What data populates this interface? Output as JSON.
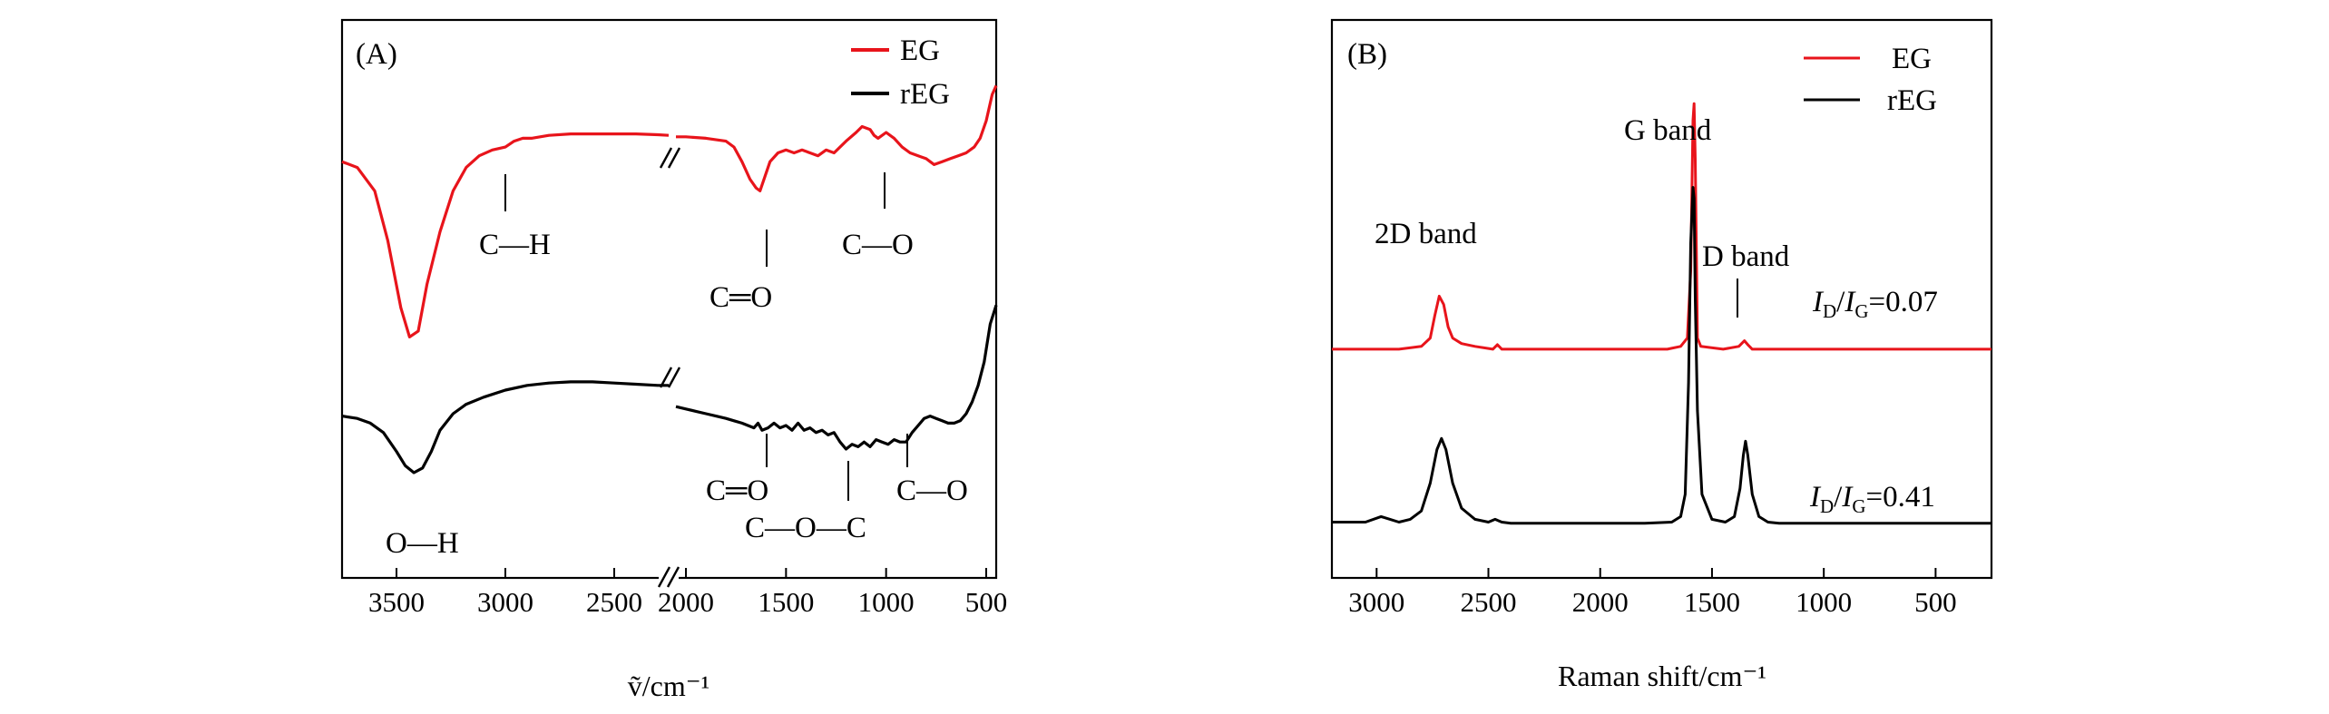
{
  "chart_data": [
    {
      "panel": "(A)",
      "type": "line",
      "title": "",
      "xlabel": "ṽ/cm⁻¹",
      "ylabel": "",
      "xlim": [
        3750,
        450
      ],
      "axis_break": [
        2250,
        2050
      ],
      "x_ticks": [
        3500,
        3000,
        2500,
        2000,
        1500,
        1000,
        500
      ],
      "x_tick_labels": [
        "3500",
        "3000",
        "2500",
        "2000",
        "1500",
        "1000",
        "500"
      ],
      "legend": {
        "placement": "top-right",
        "entries": [
          "EG",
          "rEG"
        ]
      },
      "series": [
        {
          "name": "EG",
          "color": "#e8141b",
          "x": [
            3750,
            3680,
            3600,
            3540,
            3480,
            3440,
            3400,
            3360,
            3300,
            3240,
            3180,
            3120,
            3060,
            3000,
            2960,
            2920,
            2880,
            2800,
            2700,
            2600,
            2500,
            2400,
            2300,
            2250,
            2050,
            2000,
            1900,
            1800,
            1760,
            1720,
            1680,
            1650,
            1630,
            1610,
            1580,
            1540,
            1500,
            1460,
            1420,
            1380,
            1340,
            1300,
            1260,
            1200,
            1150,
            1120,
            1080,
            1060,
            1040,
            1000,
            960,
            920,
            880,
            840,
            800,
            780,
            760,
            720,
            680,
            640,
            600,
            560,
            530,
            500,
            470,
            450
          ],
          "y": [
            0.72,
            0.7,
            0.62,
            0.45,
            0.22,
            0.12,
            0.14,
            0.3,
            0.48,
            0.62,
            0.7,
            0.74,
            0.76,
            0.77,
            0.79,
            0.8,
            0.8,
            0.81,
            0.815,
            0.815,
            0.815,
            0.815,
            0.812,
            0.81,
            0.805,
            0.805,
            0.8,
            0.79,
            0.77,
            0.72,
            0.66,
            0.63,
            0.62,
            0.66,
            0.72,
            0.75,
            0.76,
            0.75,
            0.76,
            0.75,
            0.74,
            0.76,
            0.75,
            0.79,
            0.82,
            0.84,
            0.83,
            0.81,
            0.8,
            0.82,
            0.8,
            0.77,
            0.75,
            0.74,
            0.73,
            0.72,
            0.71,
            0.72,
            0.73,
            0.74,
            0.75,
            0.77,
            0.8,
            0.86,
            0.95,
            0.98
          ]
        },
        {
          "name": "rEG",
          "color": "#000000",
          "x": [
            3750,
            3680,
            3620,
            3560,
            3500,
            3460,
            3420,
            3380,
            3340,
            3300,
            3240,
            3180,
            3100,
            3000,
            2900,
            2800,
            2700,
            2600,
            2500,
            2400,
            2300,
            2250,
            2050,
            2000,
            1950,
            1900,
            1850,
            1800,
            1760,
            1720,
            1690,
            1660,
            1640,
            1620,
            1590,
            1560,
            1530,
            1500,
            1470,
            1440,
            1410,
            1380,
            1350,
            1320,
            1290,
            1260,
            1230,
            1200,
            1170,
            1140,
            1110,
            1080,
            1050,
            1020,
            990,
            960,
            930,
            900,
            870,
            840,
            810,
            780,
            750,
            720,
            690,
            660,
            630,
            600,
            570,
            540,
            510,
            480,
            450
          ],
          "y": [
            0.39,
            0.38,
            0.36,
            0.32,
            0.24,
            0.18,
            0.15,
            0.17,
            0.24,
            0.33,
            0.4,
            0.44,
            0.47,
            0.5,
            0.52,
            0.53,
            0.535,
            0.535,
            0.53,
            0.525,
            0.52,
            0.52,
            0.43,
            0.42,
            0.41,
            0.4,
            0.39,
            0.38,
            0.37,
            0.36,
            0.35,
            0.34,
            0.36,
            0.33,
            0.34,
            0.36,
            0.34,
            0.35,
            0.33,
            0.36,
            0.33,
            0.34,
            0.32,
            0.33,
            0.31,
            0.32,
            0.28,
            0.25,
            0.27,
            0.26,
            0.28,
            0.26,
            0.29,
            0.28,
            0.27,
            0.29,
            0.28,
            0.28,
            0.32,
            0.35,
            0.38,
            0.39,
            0.38,
            0.37,
            0.36,
            0.36,
            0.37,
            0.4,
            0.45,
            0.52,
            0.62,
            0.78,
            0.86
          ]
        }
      ],
      "annotations": [
        "C—H",
        "C═O",
        "C—O",
        "O—H",
        "C═O",
        "C—O—C",
        "C—O"
      ]
    },
    {
      "panel": "(B)",
      "type": "line",
      "title": "",
      "xlabel": "Raman shift/cm⁻¹",
      "ylabel": "",
      "xlim": [
        3200,
        250
      ],
      "x_ticks": [
        3000,
        2500,
        2000,
        1500,
        1000,
        500
      ],
      "x_tick_labels": [
        "3000",
        "2500",
        "2000",
        "1500",
        "1000",
        "500"
      ],
      "legend": {
        "placement": "top-right",
        "entries": [
          "EG",
          "rEG"
        ]
      },
      "series": [
        {
          "name": "EG",
          "color": "#e8141b",
          "x": [
            3200,
            2900,
            2800,
            2760,
            2740,
            2720,
            2700,
            2680,
            2660,
            2620,
            2560,
            2480,
            2460,
            2440,
            2300,
            2000,
            1700,
            1640,
            1610,
            1595,
            1585,
            1580,
            1575,
            1565,
            1550,
            1450,
            1380,
            1355,
            1340,
            1320,
            1250,
            1000,
            500,
            250
          ],
          "y": [
            0.41,
            0.41,
            0.415,
            0.43,
            0.47,
            0.505,
            0.49,
            0.45,
            0.43,
            0.42,
            0.415,
            0.41,
            0.418,
            0.41,
            0.41,
            0.41,
            0.41,
            0.415,
            0.43,
            0.55,
            0.82,
            0.85,
            0.75,
            0.43,
            0.415,
            0.41,
            0.415,
            0.425,
            0.418,
            0.41,
            0.41,
            0.41,
            0.41,
            0.41
          ]
        },
        {
          "name": "rEG",
          "color": "#000000",
          "x": [
            3200,
            3050,
            2980,
            2940,
            2900,
            2850,
            2800,
            2760,
            2730,
            2710,
            2690,
            2660,
            2620,
            2560,
            2500,
            2470,
            2440,
            2400,
            2300,
            2000,
            1800,
            1680,
            1640,
            1620,
            1605,
            1595,
            1585,
            1580,
            1575,
            1565,
            1545,
            1500,
            1440,
            1400,
            1375,
            1360,
            1350,
            1340,
            1320,
            1290,
            1250,
            1200,
            1000,
            500,
            250
          ],
          "y": [
            0.1,
            0.1,
            0.11,
            0.105,
            0.1,
            0.105,
            0.12,
            0.17,
            0.23,
            0.25,
            0.23,
            0.17,
            0.125,
            0.105,
            0.1,
            0.105,
            0.1,
            0.098,
            0.098,
            0.098,
            0.098,
            0.1,
            0.11,
            0.15,
            0.35,
            0.6,
            0.7,
            0.68,
            0.5,
            0.3,
            0.15,
            0.105,
            0.1,
            0.11,
            0.16,
            0.22,
            0.245,
            0.22,
            0.15,
            0.11,
            0.1,
            0.098,
            0.098,
            0.098,
            0.098
          ]
        }
      ],
      "annotations": [
        "2D band",
        "G band",
        "D band"
      ],
      "ratio_labels": [
        {
          "series": "EG",
          "I": "I",
          "D": "D",
          "slash": "/",
          "G": "G",
          "value": "=0.07"
        },
        {
          "series": "rEG",
          "I": "I",
          "D": "D",
          "slash": "/",
          "G": "G",
          "value": "=0.41"
        }
      ]
    }
  ]
}
